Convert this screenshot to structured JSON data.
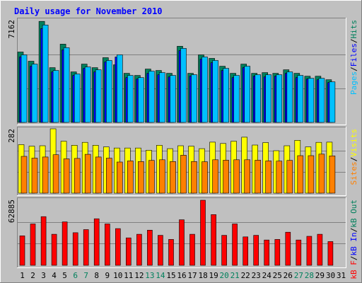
{
  "chart_data": {
    "type": "bar",
    "title": "Daily usage for November 2010",
    "categories": [
      "1",
      "2",
      "3",
      "4",
      "5",
      "6",
      "7",
      "8",
      "9",
      "10",
      "11",
      "12",
      "13",
      "14",
      "15",
      "16",
      "17",
      "18",
      "19",
      "20",
      "21",
      "22",
      "23",
      "24",
      "25",
      "26",
      "27",
      "28",
      "29",
      "30",
      "31"
    ],
    "weekend_days": [
      "6",
      "7",
      "13",
      "14",
      "20",
      "21",
      "27",
      "28"
    ],
    "colors": {
      "hits": "#00805c",
      "files": "#0000ff",
      "pages": "#00c0ff",
      "visits": "#ffff00",
      "sites": "#ff8000",
      "kb_f": "#ff0000",
      "kb_in": "#0000ff",
      "kb_out": "#00805c",
      "weekday_label": "#000000",
      "weekend_label": "#00805c",
      "title": "#0000ff",
      "panel_bg": "#c0c0c0"
    },
    "panels": [
      {
        "id": "top",
        "ymax_label": "7162",
        "ylim": [
          0,
          7162
        ],
        "legend": [
          {
            "text": "Pages",
            "color": "#00c0ff"
          },
          {
            "text": "/",
            "color": "#000000"
          },
          {
            "text": "Files",
            "color": "#0000ff"
          },
          {
            "text": "/",
            "color": "#000000"
          },
          {
            "text": "Hits",
            "color": "#00805c"
          }
        ],
        "series": [
          {
            "name": "Hits",
            "color": "#00805c",
            "values": [
              4950,
              4300,
              7100,
              3850,
              5500,
              3550,
              4100,
              3850,
              4550,
              4050,
              3450,
              3300,
              3750,
              3650,
              3450,
              5350,
              3450,
              4750,
              4500,
              3950,
              3450,
              4100,
              3450,
              3500,
              3450,
              3700,
              3450,
              3250,
              3250,
              3000,
              0
            ]
          },
          {
            "name": "Files",
            "color": "#0000ff",
            "values": [
              4600,
              3950,
              6600,
              3550,
              5100,
              3300,
              3800,
              3550,
              4250,
              4600,
              3150,
              3050,
              3450,
              3350,
              3200,
              5050,
              3250,
              4450,
              4200,
              3650,
              3150,
              3850,
              3250,
              3200,
              3250,
              3450,
              3150,
              3050,
              3000,
              2800,
              0
            ]
          },
          {
            "name": "Pages",
            "color": "#00c0ff",
            "values": [
              4750,
              4100,
              6850,
              3650,
              5250,
              3400,
              3900,
              3700,
              4350,
              4750,
              3300,
              3150,
              3600,
              3500,
              3300,
              5200,
              3350,
              4600,
              4350,
              3800,
              3300,
              3950,
              3350,
              3350,
              3350,
              3550,
              3300,
              3100,
              3100,
              2850,
              0
            ]
          }
        ]
      },
      {
        "id": "middle",
        "ymax_label": "282",
        "ylim": [
          0,
          282
        ],
        "legend": [
          {
            "text": "Sites",
            "color": "#ff8000"
          },
          {
            "text": "/",
            "color": "#000000"
          },
          {
            "text": "Visits",
            "color": "#ffff00"
          }
        ],
        "series": [
          {
            "name": "Visits",
            "color": "#ffff00",
            "values": [
              215,
              208,
              210,
              285,
              230,
              212,
              225,
              212,
              205,
              200,
              200,
              200,
              190,
              212,
              197,
              210,
              208,
              197,
              226,
              220,
              230,
              248,
              213,
              224,
              188,
              210,
              234,
              205,
              225,
              226,
              0
            ]
          },
          {
            "name": "Sites",
            "color": "#ff8000",
            "values": [
              163,
              155,
              160,
              170,
              152,
              154,
              172,
              160,
              155,
              138,
              143,
              140,
              145,
              148,
              140,
              168,
              140,
              139,
              148,
              146,
              148,
              148,
              146,
              143,
              142,
              145,
              166,
              166,
              173,
              165,
              0
            ]
          }
        ]
      },
      {
        "id": "bottom",
        "ymax_label": "62885",
        "ylim": [
          0,
          62885
        ],
        "legend": [
          {
            "text": "kB F",
            "color": "#ff0000"
          },
          {
            "text": "/",
            "color": "#000000"
          },
          {
            "text": "kB In",
            "color": "#0000ff"
          },
          {
            "text": "/",
            "color": "#000000"
          },
          {
            "text": "kB Out",
            "color": "#00805c"
          }
        ],
        "series": [
          {
            "name": "kB F",
            "color": "#ff0000",
            "values": [
              28500,
              40000,
              47000,
              30000,
              42000,
              31500,
              34500,
              45000,
              40000,
              35500,
              26500,
              30000,
              34000,
              29000,
              25000,
              44000,
              30000,
              62885,
              49000,
              29000,
              40000,
              27500,
              29000,
              24500,
              25000,
              32000,
              24500,
              28000,
              30000,
              23000,
              0
            ]
          }
        ]
      }
    ]
  }
}
